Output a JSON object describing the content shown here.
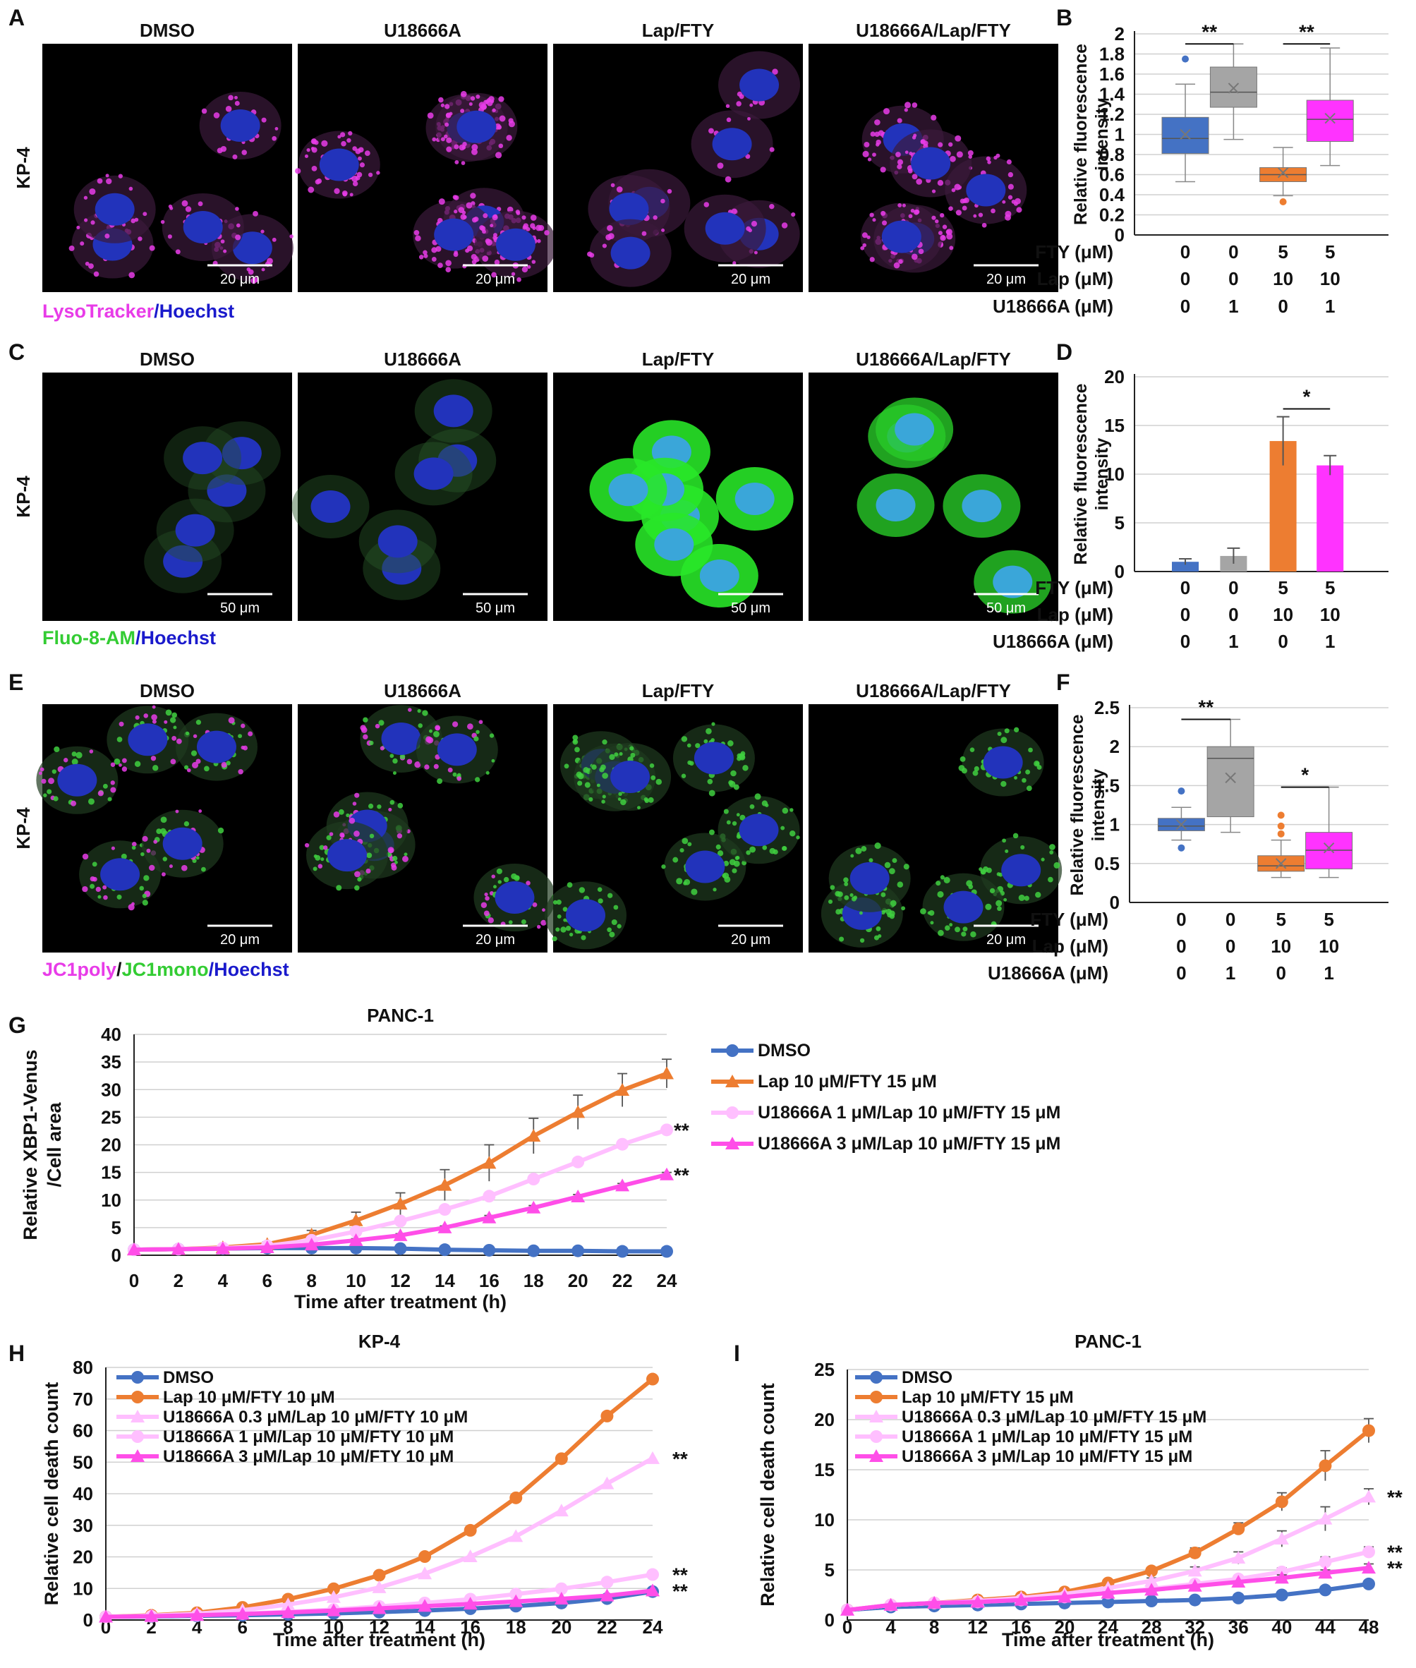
{
  "panels": [
    {
      "letter": "A",
      "row_label": "KP-4",
      "columns": [
        "DMSO",
        "U18666A",
        "Lap/FTY",
        "U18666A/Lap/FTY"
      ],
      "scale_bar": "20 μm",
      "stain": "lysosomal",
      "legend": [
        {
          "text": "LysoTracker",
          "color": "#e83ce8"
        },
        {
          "text": "/",
          "color": "#1a1acc"
        },
        {
          "text": "Hoechst",
          "color": "#1a1acc"
        }
      ]
    },
    {
      "letter": "C",
      "row_label": "KP-4",
      "columns": [
        "DMSO",
        "U18666A",
        "Lap/FTY",
        "U18666A/Lap/FTY"
      ],
      "scale_bar": "50 μm",
      "stain": "calcium",
      "legend": [
        {
          "text": "Fluo-8-AM",
          "color": "#33cc33"
        },
        {
          "text": "/",
          "color": "#1a1acc"
        },
        {
          "text": "Hoechst",
          "color": "#1a1acc"
        }
      ]
    },
    {
      "letter": "E",
      "row_label": "KP-4",
      "columns": [
        "DMSO",
        "U18666A",
        "Lap/FTY",
        "U18666A/Lap/FTY"
      ],
      "scale_bar": "20 μm",
      "stain": "mito",
      "legend": [
        {
          "text": "JC1poly",
          "color": "#e83ce8"
        },
        {
          "text": "/",
          "color": "#111111"
        },
        {
          "text": "JC1mono",
          "color": "#33cc33"
        },
        {
          "text": "/",
          "color": "#1a1acc"
        },
        {
          "text": "Hoechst",
          "color": "#1a1acc"
        }
      ]
    }
  ],
  "chart_data": [
    {
      "panel": "B",
      "type": "box",
      "ylabel": [
        "Relative fluorescence",
        "intensity"
      ],
      "ylim": [
        0,
        2
      ],
      "yticks": [
        0,
        0.2,
        0.4,
        0.6,
        0.8,
        1,
        1.2,
        1.4,
        1.6,
        1.8,
        2
      ],
      "conditions": [
        {
          "label": "FTY (μM)",
          "values": [
            "0",
            "0",
            "5",
            "5"
          ]
        },
        {
          "label": "Lap (μM)",
          "values": [
            "0",
            "0",
            "10",
            "10"
          ]
        },
        {
          "label": "U18666A (μM)",
          "values": [
            "0",
            "1",
            "0",
            "1"
          ]
        }
      ],
      "boxes": [
        {
          "min": 0.53,
          "q1": 0.81,
          "median": 0.96,
          "q3": 1.17,
          "max": 1.5,
          "mean": 1.0,
          "outliers": [
            1.75
          ],
          "color": "#4472c4"
        },
        {
          "min": 0.95,
          "q1": 1.27,
          "median": 1.42,
          "q3": 1.67,
          "max": 1.9,
          "mean": 1.46,
          "outliers": [],
          "color": "#a5a5a5"
        },
        {
          "min": 0.39,
          "q1": 0.53,
          "median": 0.6,
          "q3": 0.67,
          "max": 0.87,
          "mean": 0.62,
          "outliers": [
            0.33
          ],
          "color": "#ed7d31"
        },
        {
          "min": 0.69,
          "q1": 0.93,
          "median": 1.15,
          "q3": 1.34,
          "max": 1.86,
          "mean": 1.16,
          "outliers": [],
          "color": "#ff33ff"
        }
      ],
      "significance": [
        {
          "from": 0,
          "to": 1,
          "y": 1.9,
          "label": "**"
        },
        {
          "from": 2,
          "to": 3,
          "y": 1.9,
          "label": "**"
        }
      ]
    },
    {
      "panel": "D",
      "type": "bar",
      "ylabel": [
        "Relative fluorescence",
        "intensity"
      ],
      "ylim": [
        0,
        20
      ],
      "yticks": [
        0,
        5,
        10,
        15,
        20
      ],
      "conditions": [
        {
          "label": "FTY (μM)",
          "values": [
            "0",
            "0",
            "5",
            "5"
          ]
        },
        {
          "label": "Lap (μM)",
          "values": [
            "0",
            "0",
            "10",
            "10"
          ]
        },
        {
          "label": "U18666A (μM)",
          "values": [
            "0",
            "1",
            "0",
            "1"
          ]
        }
      ],
      "values": [
        1.0,
        1.6,
        13.4,
        10.9
      ],
      "errors": [
        0.3,
        0.8,
        2.5,
        1.0
      ],
      "colors": [
        "#4472c4",
        "#a5a5a5",
        "#ed7d31",
        "#ff33ff"
      ],
      "significance": [
        {
          "from": 2,
          "to": 3,
          "y": 16.7,
          "label": "*"
        }
      ]
    },
    {
      "panel": "F",
      "type": "box",
      "ylabel": [
        "Relative fluorescence",
        "intensity"
      ],
      "ylim": [
        0,
        2.5
      ],
      "yticks": [
        0,
        0.5,
        1,
        1.5,
        2,
        2.5
      ],
      "conditions": [
        {
          "label": "FTY (μM)",
          "values": [
            "0",
            "0",
            "5",
            "5"
          ]
        },
        {
          "label": "Lap (μM)",
          "values": [
            "0",
            "0",
            "10",
            "10"
          ]
        },
        {
          "label": "U18666A (μM)",
          "values": [
            "0",
            "1",
            "0",
            "1"
          ]
        }
      ],
      "boxes": [
        {
          "min": 0.8,
          "q1": 0.92,
          "median": 0.98,
          "q3": 1.08,
          "max": 1.22,
          "mean": 1.0,
          "outliers": [
            1.43,
            0.7
          ],
          "color": "#4472c4"
        },
        {
          "min": 0.9,
          "q1": 1.1,
          "median": 1.85,
          "q3": 2.0,
          "max": 2.35,
          "mean": 1.6,
          "outliers": [],
          "color": "#a5a5a5"
        },
        {
          "min": 0.32,
          "q1": 0.4,
          "median": 0.47,
          "q3": 0.6,
          "max": 0.8,
          "mean": 0.5,
          "outliers": [
            1.12,
            0.98,
            0.88
          ],
          "color": "#ed7d31"
        },
        {
          "min": 0.32,
          "q1": 0.43,
          "median": 0.67,
          "q3": 0.9,
          "max": 1.48,
          "mean": 0.7,
          "outliers": [],
          "color": "#ff33ff"
        }
      ],
      "significance": [
        {
          "from": 0,
          "to": 1,
          "y": 2.35,
          "label": "**"
        },
        {
          "from": 2,
          "to": 3,
          "y": 1.48,
          "label": "*"
        }
      ]
    },
    {
      "panel": "G",
      "type": "line",
      "title": "PANC-1",
      "xlabel": "Time after treatment (h)",
      "ylabel": [
        "Relative XBP1-Venus",
        "/Cell area"
      ],
      "x": [
        0,
        2,
        4,
        6,
        8,
        10,
        12,
        14,
        16,
        18,
        20,
        22,
        24
      ],
      "ylim": [
        0,
        40
      ],
      "yticks": [
        0,
        5,
        10,
        15,
        20,
        25,
        30,
        35,
        40
      ],
      "legend_position": "right",
      "series": [
        {
          "name": "DMSO",
          "color": "#4472c4",
          "marker": "circle",
          "values": [
            1,
            1.1,
            1.2,
            1.3,
            1.3,
            1.3,
            1.2,
            1.0,
            0.9,
            0.8,
            0.8,
            0.7,
            0.7
          ],
          "errors": [
            0.2,
            0.2,
            0.2,
            0.2,
            0.2,
            0.2,
            0.2,
            0.2,
            0.2,
            0.2,
            0.2,
            0.2,
            0.2
          ]
        },
        {
          "name": "Lap 10 μM/FTY 15 μM",
          "color": "#ed7d31",
          "marker": "triangle",
          "values": [
            1,
            1.1,
            1.4,
            2.0,
            3.7,
            6.3,
            9.3,
            12.7,
            16.7,
            21.6,
            25.9,
            29.9,
            32.9
          ],
          "errors": [
            0.2,
            0.2,
            0.3,
            0.4,
            0.8,
            1.5,
            2.0,
            2.8,
            3.3,
            3.2,
            3.1,
            3.0,
            2.6
          ]
        },
        {
          "name": "U18666A 1 μM/Lap 10 μM/FTY 15 μM",
          "color": "#ffbfff",
          "marker": "circle",
          "values": [
            1,
            1.1,
            1.3,
            1.7,
            2.7,
            4.3,
            6.2,
            8.3,
            10.7,
            13.8,
            16.9,
            20.1,
            22.7
          ],
          "errors": [
            0.1,
            0.1,
            0.2,
            0.2,
            0.3,
            0.4,
            0.5,
            0.5,
            0.5,
            0.5,
            0.5,
            0.5,
            0.5
          ]
        },
        {
          "name": "U18666A 3 μM/Lap 10 μM/FTY 15 μM",
          "color": "#ff4ee8",
          "marker": "triangle",
          "values": [
            1,
            1.1,
            1.2,
            1.4,
            1.9,
            2.7,
            3.6,
            5.0,
            6.8,
            8.6,
            10.6,
            12.6,
            14.6
          ],
          "errors": [
            0.1,
            0.1,
            0.1,
            0.2,
            0.2,
            0.3,
            0.3,
            0.3,
            0.4,
            0.4,
            0.4,
            0.4,
            0.4
          ]
        }
      ],
      "annotations": [
        {
          "series": 2,
          "label": "**"
        },
        {
          "series": 3,
          "label": "**"
        }
      ]
    },
    {
      "panel": "H",
      "type": "line",
      "title": "KP-4",
      "xlabel": "Time after treatment (h)",
      "ylabel": [
        "Relative cell death count"
      ],
      "x": [
        0,
        2,
        4,
        6,
        8,
        10,
        12,
        14,
        16,
        18,
        20,
        22,
        24
      ],
      "ylim": [
        0,
        80
      ],
      "yticks": [
        0,
        10,
        20,
        30,
        40,
        50,
        60,
        70,
        80
      ],
      "legend_position": "top-left",
      "series": [
        {
          "name": "DMSO",
          "color": "#4472c4",
          "marker": "circle",
          "values": [
            1,
            1.1,
            1.3,
            1.5,
            1.8,
            2.1,
            2.5,
            3.0,
            3.6,
            4.4,
            5.4,
            6.8,
            9.0
          ]
        },
        {
          "name": "Lap 10 μM/FTY 10 μM",
          "color": "#ed7d31",
          "marker": "circle",
          "values": [
            1,
            1.5,
            2.3,
            4.0,
            6.6,
            9.9,
            14.2,
            20.1,
            28.4,
            38.7,
            51.1,
            64.6,
            76.3
          ]
        },
        {
          "name": "U18666A 0.3 μM/Lap 10 μM/FTY 10 μM",
          "color": "#ffbfff",
          "marker": "triangle",
          "values": [
            1,
            1.4,
            2.0,
            3.1,
            4.9,
            7.2,
            10.3,
            14.7,
            20.1,
            26.5,
            34.6,
            43.2,
            51.2
          ]
        },
        {
          "name": "U18666A 1 μM/Lap 10 μM/FTY 10 μM",
          "color": "#ffbfff",
          "marker": "circle",
          "values": [
            1,
            1.2,
            1.5,
            2.0,
            2.6,
            3.3,
            4.3,
            5.4,
            6.6,
            8.2,
            9.9,
            12.0,
            14.4
          ]
        },
        {
          "name": "U18666A 3 μM/Lap 10 μM/FTY 10 μM",
          "color": "#ff4ee8",
          "marker": "triangle",
          "values": [
            1,
            1.2,
            1.5,
            1.9,
            2.4,
            3.0,
            3.7,
            4.4,
            5.1,
            5.9,
            6.7,
            7.7,
            9.3
          ]
        }
      ],
      "annotations": [
        {
          "series": 2,
          "label": "**"
        },
        {
          "series": 3,
          "label": "**"
        },
        {
          "series": 4,
          "label": "**"
        }
      ]
    },
    {
      "panel": "I",
      "type": "line",
      "title": "PANC-1",
      "xlabel": "Time after treatment (h)",
      "ylabel": [
        "Relative cell death count"
      ],
      "x": [
        0,
        4,
        8,
        12,
        16,
        20,
        24,
        28,
        32,
        36,
        40,
        44,
        48
      ],
      "ylim": [
        0,
        25
      ],
      "yticks": [
        0,
        5,
        10,
        15,
        20,
        25
      ],
      "legend_position": "top-left",
      "series": [
        {
          "name": "DMSO",
          "color": "#4472c4",
          "marker": "circle",
          "values": [
            1,
            1.3,
            1.4,
            1.5,
            1.6,
            1.7,
            1.8,
            1.9,
            2.0,
            2.2,
            2.5,
            3.0,
            3.6
          ],
          "errors": [
            0.1,
            0.1,
            0.1,
            0.1,
            0.1,
            0.1,
            0.1,
            0.1,
            0.1,
            0.1,
            0.2,
            0.2,
            0.3
          ]
        },
        {
          "name": "Lap 10 μM/FTY 15 μM",
          "color": "#ed7d31",
          "marker": "circle",
          "values": [
            1,
            1.5,
            1.7,
            2.0,
            2.3,
            2.8,
            3.7,
            4.9,
            6.7,
            9.1,
            11.8,
            15.4,
            18.9
          ],
          "errors": [
            0.1,
            0.1,
            0.1,
            0.1,
            0.1,
            0.2,
            0.3,
            0.3,
            0.5,
            0.6,
            0.9,
            1.5,
            1.2
          ]
        },
        {
          "name": "U18666A 0.3 μM/Lap 10 μM/FTY 15 μM",
          "color": "#ffbfff",
          "marker": "triangle",
          "values": [
            1,
            1.5,
            1.7,
            1.9,
            2.2,
            2.6,
            3.2,
            3.9,
            4.9,
            6.2,
            8.1,
            10.1,
            12.3
          ],
          "errors": [
            0.1,
            0.1,
            0.1,
            0.1,
            0.2,
            0.2,
            0.2,
            0.3,
            0.4,
            0.6,
            0.8,
            1.2,
            0.8
          ]
        },
        {
          "name": "U18666A 1 μM/Lap 10 μM/FTY 15 μM",
          "color": "#ffbfff",
          "marker": "circle",
          "values": [
            1,
            1.5,
            1.7,
            1.8,
            2.0,
            2.3,
            2.7,
            3.1,
            3.6,
            4.1,
            4.8,
            5.8,
            6.8
          ],
          "errors": [
            0.1,
            0.1,
            0.1,
            0.1,
            0.1,
            0.1,
            0.2,
            0.2,
            0.3,
            0.3,
            0.4,
            0.5,
            0.5
          ]
        },
        {
          "name": "U18666A 3 μM/Lap 10 μM/FTY 15 μM",
          "color": "#ff4ee8",
          "marker": "triangle",
          "values": [
            1,
            1.5,
            1.7,
            1.8,
            2.0,
            2.3,
            2.7,
            3.0,
            3.4,
            3.8,
            4.2,
            4.7,
            5.2
          ],
          "errors": [
            0.1,
            0.1,
            0.1,
            0.1,
            0.1,
            0.1,
            0.1,
            0.2,
            0.2,
            0.2,
            0.3,
            0.3,
            0.4
          ]
        }
      ],
      "annotations": [
        {
          "series": 2,
          "label": "**"
        },
        {
          "series": 3,
          "label": "**"
        },
        {
          "series": 4,
          "label": "**"
        }
      ]
    }
  ]
}
